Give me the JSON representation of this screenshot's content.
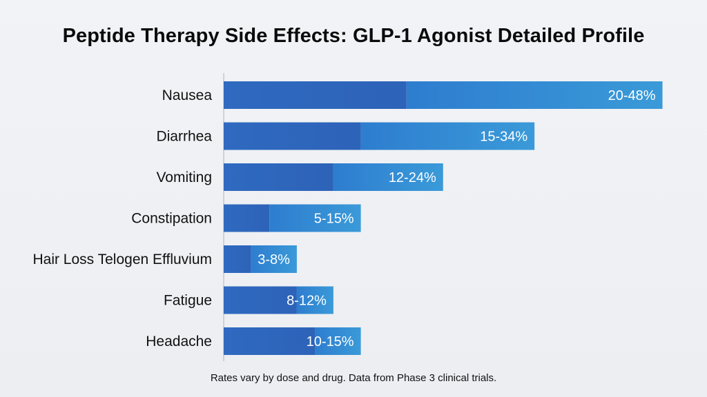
{
  "chart_data": {
    "type": "bar",
    "orientation": "horizontal",
    "title": "Peptide Therapy Side Effects: GLP-1 Agonist Detailed Profile",
    "categories": [
      "Nausea",
      "Diarrhea",
      "Vomiting",
      "Constipation",
      "Hair Loss Telogen Effluvium",
      "Fatigue",
      "Headache"
    ],
    "value_labels": [
      "20-48%",
      "15-34%",
      "12-24%",
      "5-15%",
      "3-8%",
      "8-12%",
      "10-15%"
    ],
    "ranges": [
      [
        20,
        48
      ],
      [
        15,
        34
      ],
      [
        12,
        24
      ],
      [
        5,
        15
      ],
      [
        3,
        8
      ],
      [
        8,
        12
      ],
      [
        10,
        15
      ]
    ],
    "xlim": [
      0,
      50
    ],
    "note": "Rates vary by dose and drug. Data from Phase 3 clinical trials.",
    "colors": {
      "bar_low": "#2f6ac0",
      "bar_high": "#3a9ad8",
      "axis": "#c4c7cc"
    }
  }
}
